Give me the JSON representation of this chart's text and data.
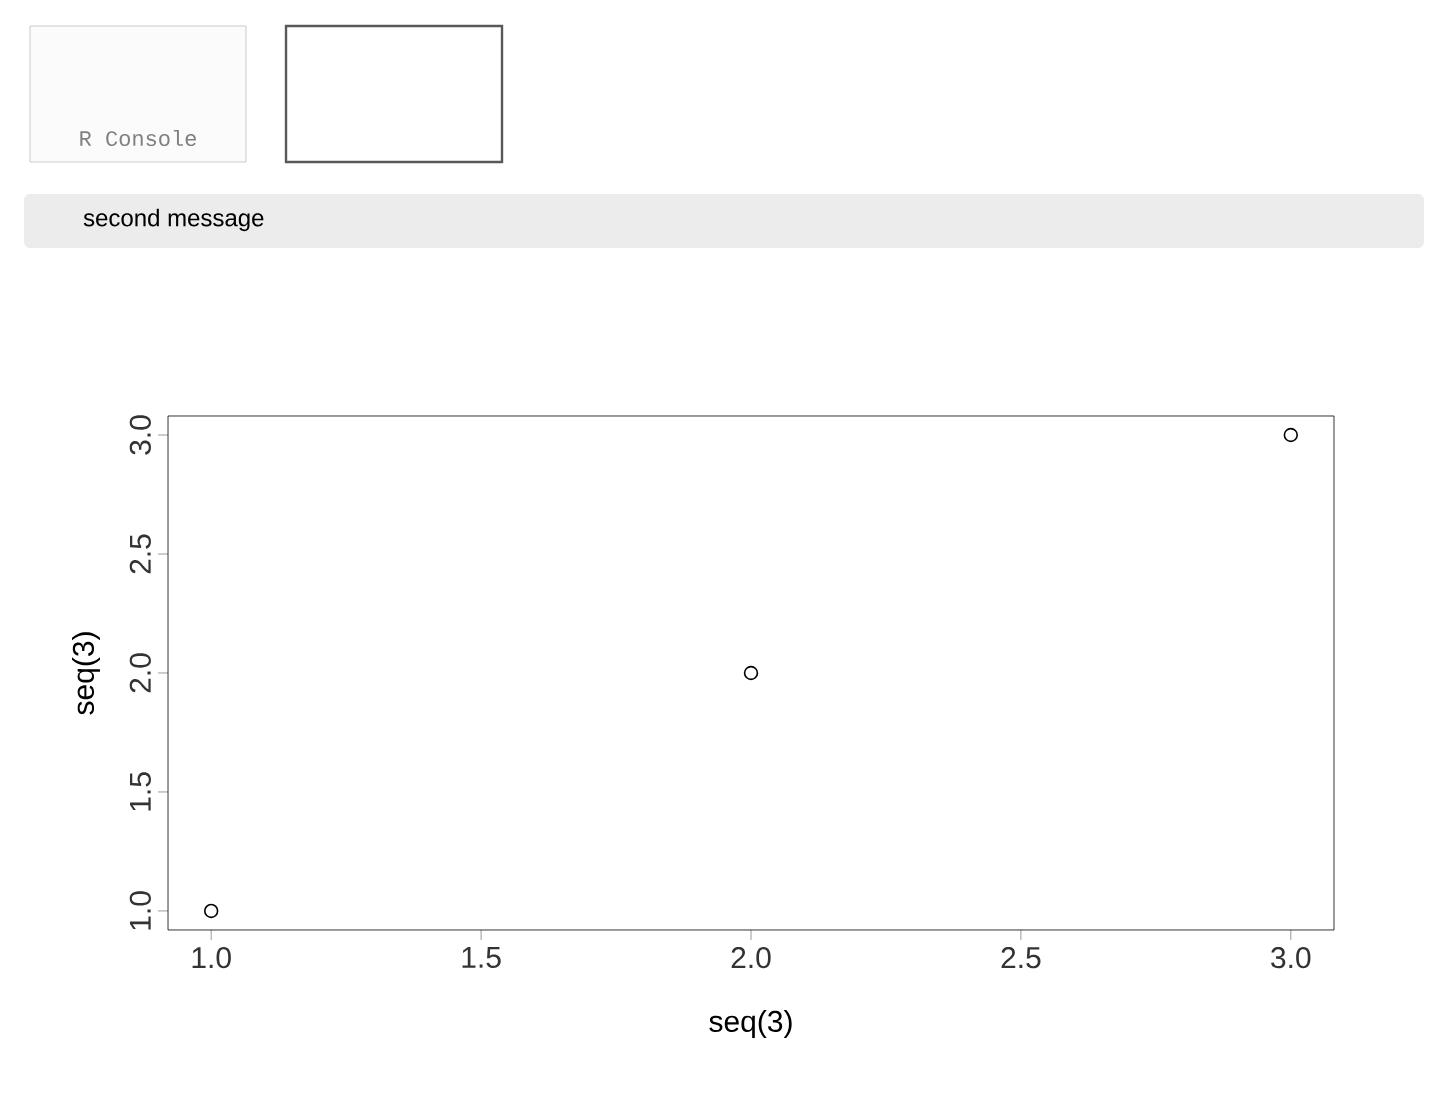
{
  "chart_data": {
    "type": "scatter",
    "xlabel": "seq(3)",
    "ylabel": "seq(3)",
    "x": [
      1,
      2,
      3
    ],
    "values": [
      1,
      2,
      3
    ],
    "color": "#000000",
    "marker": "circle",
    "xlim": [
      0.92,
      3.08
    ],
    "ylim": [
      0.92,
      3.08
    ],
    "xticks": [
      {
        "value": 1,
        "label": "1.0"
      },
      1.5,
      {
        "value": 2,
        "label": "2.0"
      },
      2.5,
      {
        "value": 3,
        "label": "3.0"
      }
    ],
    "yticks": [
      {
        "value": 1,
        "label": "1.0"
      },
      1.5,
      {
        "value": 2,
        "label": "2.0"
      },
      2.5,
      {
        "value": 3,
        "label": "3.0"
      }
    ],
    "annotations": [
      "R Console",
      "second message"
    ]
  }
}
